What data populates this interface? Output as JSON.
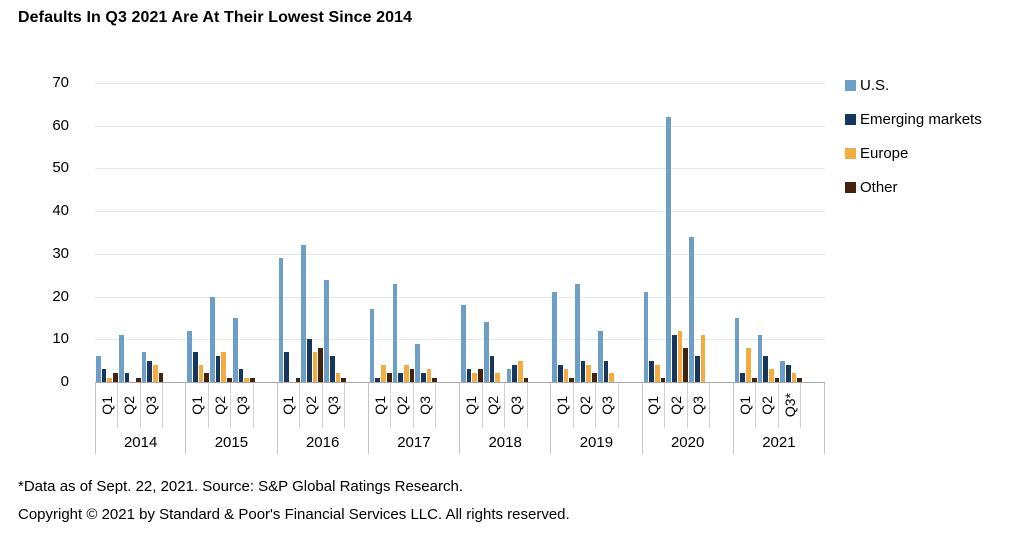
{
  "title": "Defaults In Q3 2021 Are At Their Lowest Since 2014",
  "footer": {
    "footnote": "*Data as of Sept. 22, 2021. Source: S&P Global Ratings Research.",
    "copyright": "Copyright © 2021 by Standard & Poor's Financial Services LLC. All rights reserved."
  },
  "chart_data": {
    "type": "bar",
    "title": "Defaults In Q3 2021 Are At Their Lowest Since 2014",
    "xlabel": "",
    "ylabel": "",
    "ylim": [
      0,
      70
    ],
    "yticks": [
      0,
      10,
      20,
      30,
      40,
      50,
      60,
      70
    ],
    "grid": true,
    "legend_position": "right",
    "years": [
      "2014",
      "2015",
      "2016",
      "2017",
      "2018",
      "2019",
      "2020",
      "2021"
    ],
    "quarters": [
      "Q1",
      "Q2",
      "Q3"
    ],
    "final_quarter_label": "Q3*",
    "series": [
      {
        "name": "U.S.",
        "color": "#6d9ec8",
        "values": [
          [
            6,
            11,
            7
          ],
          [
            12,
            20,
            15
          ],
          [
            29,
            32,
            24
          ],
          [
            17,
            23,
            9
          ],
          [
            18,
            14,
            3
          ],
          [
            21,
            23,
            12
          ],
          [
            21,
            62,
            34
          ],
          [
            15,
            11,
            5
          ]
        ]
      },
      {
        "name": "Emerging markets",
        "color": "#17365d",
        "values": [
          [
            3,
            2,
            5
          ],
          [
            7,
            6,
            3
          ],
          [
            7,
            10,
            6
          ],
          [
            1,
            2,
            2
          ],
          [
            3,
            6,
            4
          ],
          [
            4,
            5,
            5
          ],
          [
            5,
            11,
            6
          ],
          [
            2,
            6,
            4
          ]
        ]
      },
      {
        "name": "Europe",
        "color": "#f3ab42",
        "values": [
          [
            1,
            0,
            4
          ],
          [
            4,
            7,
            1
          ],
          [
            0,
            7,
            2
          ],
          [
            4,
            4,
            3
          ],
          [
            2,
            2,
            5
          ],
          [
            3,
            4,
            2
          ],
          [
            4,
            12,
            11
          ],
          [
            8,
            3,
            2
          ]
        ]
      },
      {
        "name": "Other",
        "color": "#44230e",
        "values": [
          [
            2,
            1,
            2
          ],
          [
            2,
            1,
            1
          ],
          [
            1,
            8,
            1
          ],
          [
            2,
            3,
            1
          ],
          [
            3,
            0,
            1
          ],
          [
            1,
            2,
            0
          ],
          [
            1,
            8,
            0
          ],
          [
            1,
            1,
            1
          ]
        ]
      }
    ],
    "style": {
      "gridline_color": "#e8e8e8",
      "axis_line_color": "#a8a8a8",
      "divider_color": "#c4c4c4"
    }
  }
}
